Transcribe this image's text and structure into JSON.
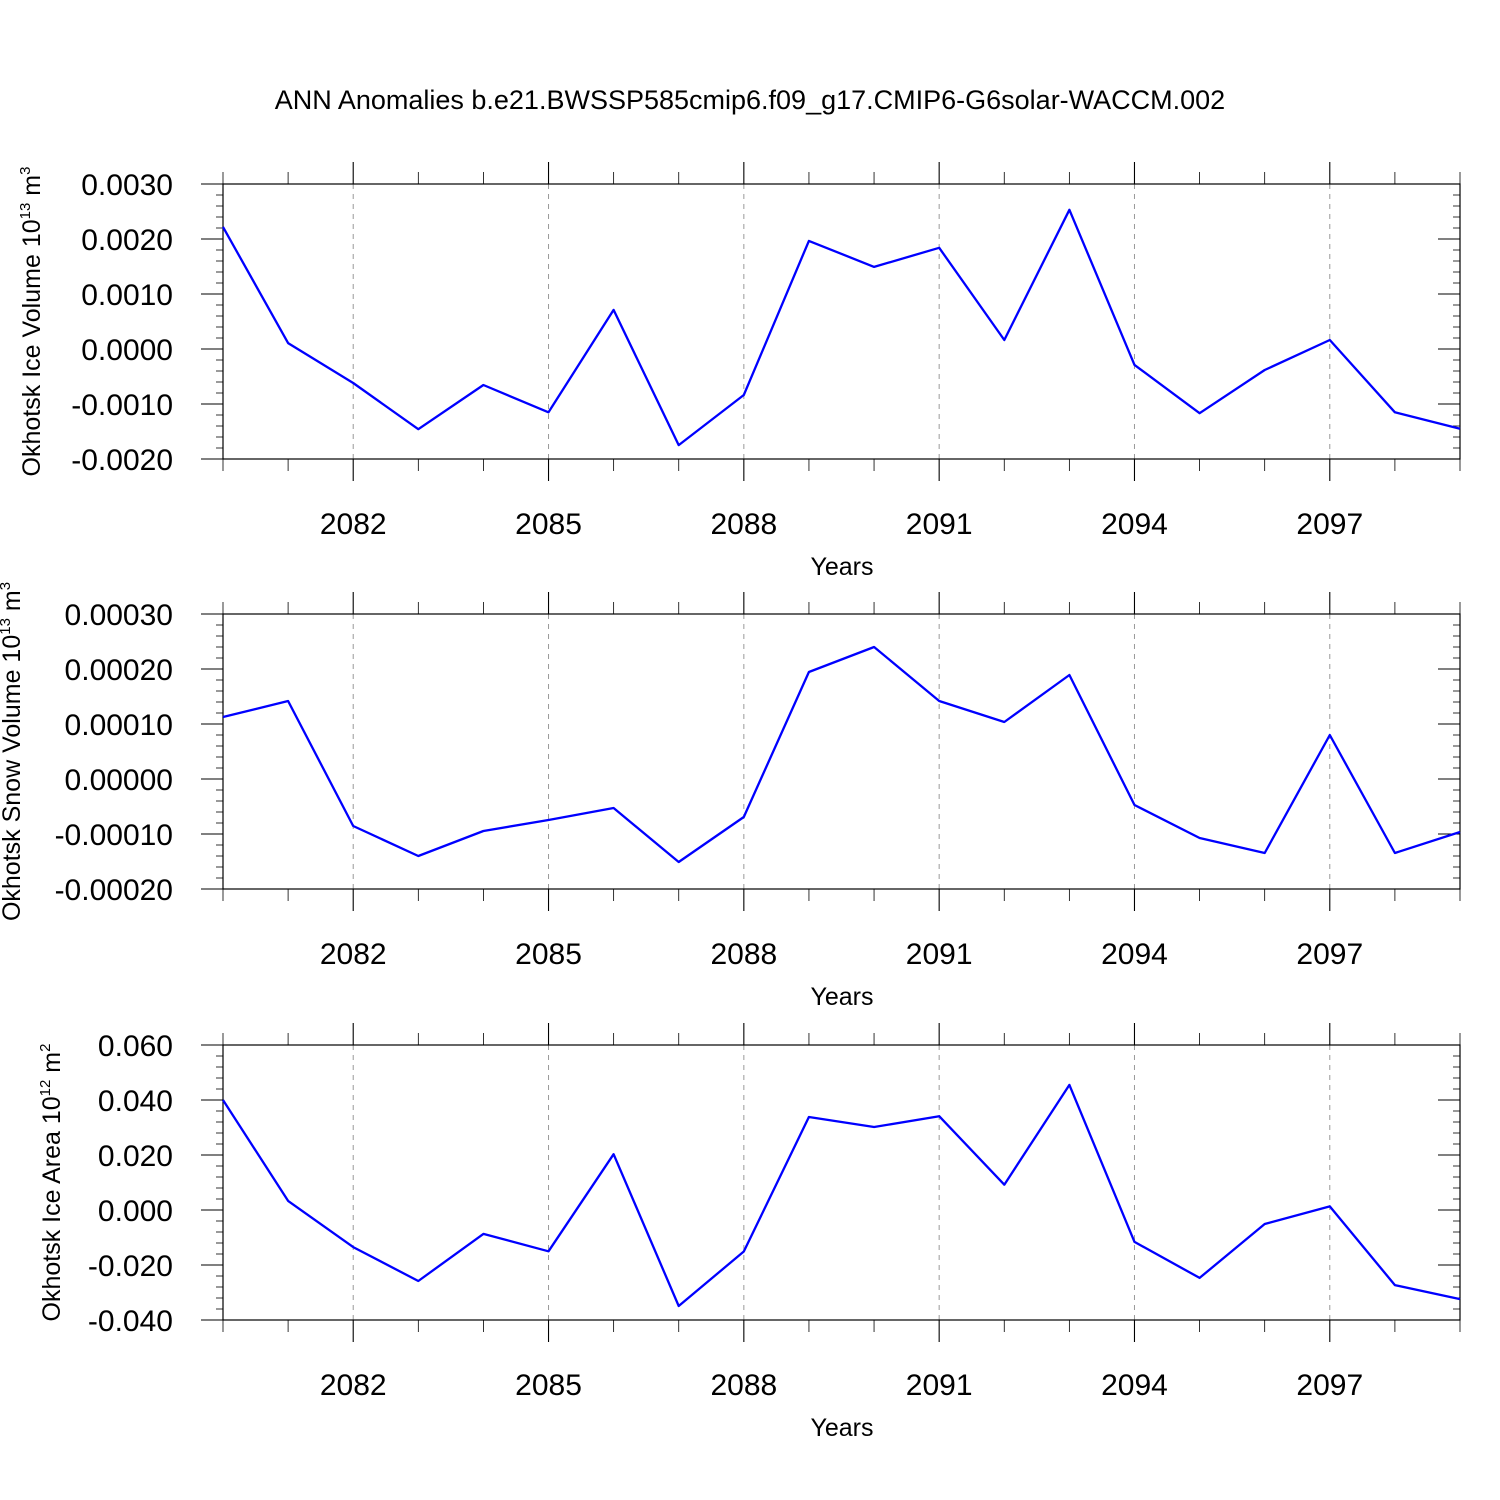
{
  "title": "ANN Anomalies b.e21.BWSSP585cmip6.f09_g17.CMIP6-G6solar-WACCM.002",
  "line_color": "#0000ff",
  "grid_color": "#999999",
  "chart_data": [
    {
      "type": "line",
      "ylabel": "Okhotsk Ice Volume 10",
      "ylabel_exp": "13",
      "ylabel_unit": "m",
      "ylabel_unit_exp": "3",
      "xlabel": "Years",
      "xlim": [
        2080,
        2099
      ],
      "ylim": [
        -0.002,
        0.003
      ],
      "xticks": [
        2082,
        2085,
        2088,
        2091,
        2094,
        2097
      ],
      "yticks": [
        0.003,
        0.002,
        0.001,
        0.0,
        -0.001,
        -0.002
      ],
      "ytick_labels": [
        "0.0030",
        "0.0020",
        "0.0010",
        "0.0000",
        "-0.0010",
        "-0.0020"
      ],
      "grid": "x-dashed",
      "x": [
        2080,
        2081,
        2082,
        2083,
        2084,
        2085,
        2086,
        2087,
        2088,
        2089,
        2090,
        2091,
        2092,
        2093,
        2094,
        2095,
        2096,
        2097,
        2098,
        2099
      ],
      "series": [
        {
          "values": [
            0.00222,
            0.000108,
            -0.000618,
            -0.001458,
            -0.000654,
            -0.00115,
            0.00071,
            -0.001747,
            -0.000836,
            0.001965,
            0.001493,
            0.00184,
            0.000163,
            0.00253,
            -0.00029,
            -0.001168,
            -0.000381,
            0.000163,
            -0.00115,
            -0.001449
          ]
        }
      ]
    },
    {
      "type": "line",
      "ylabel": "Okhotsk Snow Volume 10",
      "ylabel_exp": "13",
      "ylabel_unit": "m",
      "ylabel_unit_exp": "3",
      "xlabel": "Years",
      "xlim": [
        2080,
        2099
      ],
      "ylim": [
        -0.0002,
        0.0003
      ],
      "xticks": [
        2082,
        2085,
        2088,
        2091,
        2094,
        2097
      ],
      "yticks": [
        0.0003,
        0.0002,
        0.0001,
        0.0,
        -0.0001,
        -0.0002
      ],
      "ytick_labels": [
        "0.00030",
        "0.00020",
        "0.00010",
        "0.00000",
        "-0.00010",
        "-0.00020"
      ],
      "grid": "x-dashed",
      "x": [
        2080,
        2081,
        2082,
        2083,
        2084,
        2085,
        2086,
        2087,
        2088,
        2089,
        2090,
        2091,
        2092,
        2093,
        2094,
        2095,
        2096,
        2097,
        2098,
        2099
      ],
      "series": [
        {
          "values": [
            0.0001127,
            0.0001418,
            -8.55e-05,
            -0.00014,
            -9.45e-05,
            -7.45e-05,
            -5.27e-05,
            -0.0001509,
            -6.91e-05,
            0.0001945,
            0.00024,
            0.0001418,
            0.0001036,
            0.0001891,
            -4.73e-05,
            -0.0001073,
            -0.0001345,
            8e-05,
            -0.0001345,
            -9.64e-05
          ]
        }
      ]
    },
    {
      "type": "line",
      "ylabel": "Okhotsk Ice Area 10",
      "ylabel_exp": "12",
      "ylabel_unit": "m",
      "ylabel_unit_exp": "2",
      "xlabel": "Years",
      "xlim": [
        2080,
        2099
      ],
      "ylim": [
        -0.04,
        0.06
      ],
      "xticks": [
        2082,
        2085,
        2088,
        2091,
        2094,
        2097
      ],
      "yticks": [
        0.06,
        0.04,
        0.02,
        0.0,
        -0.02,
        -0.04
      ],
      "ytick_labels": [
        "0.060",
        "0.040",
        "0.020",
        "0.000",
        "-0.020",
        "-0.040"
      ],
      "grid": "x-dashed",
      "x": [
        2080,
        2081,
        2082,
        2083,
        2084,
        2085,
        2086,
        2087,
        2088,
        2089,
        2090,
        2091,
        2092,
        2093,
        2094,
        2095,
        2096,
        2097,
        2098,
        2099
      ],
      "series": [
        {
          "values": [
            0.04,
            0.0033,
            -0.0135,
            -0.0258,
            -0.0087,
            -0.015,
            0.0203,
            -0.0349,
            -0.0151,
            0.0338,
            0.0302,
            0.0341,
            0.0092,
            0.0455,
            -0.0116,
            -0.0247,
            -0.0051,
            0.0013,
            -0.0273,
            -0.0324
          ]
        }
      ]
    }
  ]
}
